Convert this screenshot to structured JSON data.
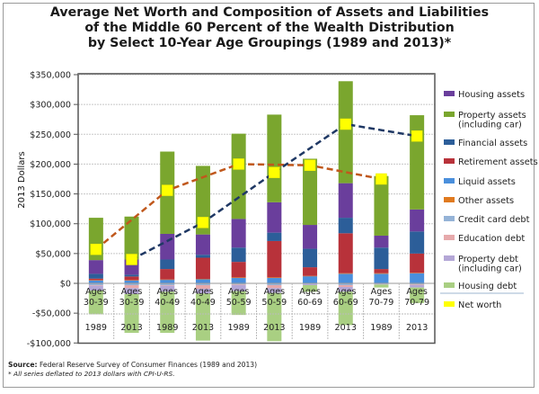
{
  "title_lines": [
    "Average Net Worth and Composition of Assets and Liabilities",
    "of the Middle 60 Percent of the Wealth Distribution",
    "by Select 10-Year Age Groupings (1989 and 2013)*"
  ],
  "source_label": "Source:",
  "source_text": " Federal Reserve Survey of Consumer Finances (1989 and 2013)",
  "note": "* All series deflated to 2013 dollars with CPI-U-RS.",
  "chart_data": {
    "type": "bar",
    "stacked": true,
    "title": "Average Net Worth and Composition of Assets and Liabilities of the Middle 60 Percent of the Wealth Distribution by Select 10-Year Age Groupings (1989 and 2013)*",
    "xlabel": "",
    "ylabel": "2013 Dollars",
    "ylim": [
      -100000,
      350000
    ],
    "yticks": [
      -100000,
      -50000,
      0,
      50000,
      100000,
      150000,
      200000,
      250000,
      300000,
      350000
    ],
    "ytick_labels": [
      "-$100,000",
      "-$50,000",
      "$0",
      "$50,000",
      "$100,000",
      "$150,000",
      "$200,000",
      "$250,000",
      "$300,000",
      "$350,000"
    ],
    "grid": true,
    "legend_position": "right",
    "categories": [
      {
        "age": "Ages 30-39",
        "year": "1989"
      },
      {
        "age": "Ages 30-39",
        "year": "2013"
      },
      {
        "age": "Ages 40-49",
        "year": "1989"
      },
      {
        "age": "Ages 40-49",
        "year": "2013"
      },
      {
        "age": "Ages 50-59",
        "year": "1989"
      },
      {
        "age": "Ages 50-59",
        "year": "2013"
      },
      {
        "age": "Ages 60-69",
        "year": "1989"
      },
      {
        "age": "Ages 60-69",
        "year": "2013"
      },
      {
        "age": "Ages 70-79",
        "year": "1989"
      },
      {
        "age": "Ages 70-79",
        "year": "2013"
      }
    ],
    "series": [
      {
        "name": "Liquid assets",
        "color": "#4a8fdc",
        "values": [
          5000,
          5000,
          6000,
          7000,
          9000,
          9000,
          12000,
          16000,
          16000,
          17000
        ]
      },
      {
        "name": "Other assets",
        "color": "#e07a1f",
        "values": [
          500,
          500,
          500,
          500,
          1000,
          1000,
          500,
          1000,
          1000,
          600
        ]
      },
      {
        "name": "Retirement assets",
        "color": "#b8323a",
        "values": [
          2500,
          6000,
          17500,
          35500,
          26000,
          61000,
          14500,
          67000,
          7000,
          32400
        ]
      },
      {
        "name": "Financial assets",
        "color": "#2c5e99",
        "values": [
          8000,
          3000,
          16000,
          5000,
          24000,
          14000,
          31000,
          26000,
          36000,
          37000
        ]
      },
      {
        "name": "Housing assets",
        "color": "#6a3e9c",
        "values": [
          23000,
          25500,
          43000,
          34000,
          48000,
          51000,
          40000,
          58000,
          20000,
          37000
        ]
      },
      {
        "name": "Property assets (including car)",
        "color": "#7aa62e",
        "values": [
          71000,
          72000,
          138000,
          115000,
          143000,
          147000,
          111000,
          171000,
          100000,
          158000
        ]
      },
      {
        "name": "Credit card debt",
        "color": "#95b3d7",
        "values": [
          -3000,
          -3000,
          -3000,
          -3000,
          -2000,
          -3000,
          -1000,
          -3000,
          -1000,
          -2000
        ]
      },
      {
        "name": "Education debt",
        "color": "#e6a9ab",
        "values": [
          -1000,
          -5000,
          -1000,
          -6000,
          -1000,
          -5000,
          0,
          -3000,
          0,
          -1000
        ]
      },
      {
        "name": "Property debt (including car)",
        "color": "#b4a7d6",
        "values": [
          -8000,
          -10000,
          -10000,
          -8000,
          -10000,
          -8000,
          -2000,
          -8000,
          -1000,
          -4000
        ]
      },
      {
        "name": "Housing debt",
        "color": "#a9cf82",
        "values": [
          -40000,
          -65000,
          -69000,
          -79000,
          -40000,
          -81000,
          -11000,
          -56000,
          -5000,
          -26000
        ]
      }
    ],
    "net_worth": {
      "name": "Net worth",
      "color": "#ffff00",
      "values": [
        57000,
        40000,
        156000,
        102000,
        200000,
        186000,
        198000,
        267000,
        175000,
        247000
      ],
      "lines": [
        {
          "year": "1989",
          "color": "#c0581c",
          "style": "dashed"
        },
        {
          "year": "2013",
          "color": "#1f3864",
          "style": "dashed"
        }
      ]
    },
    "legend": [
      {
        "label": [
          "Housing assets"
        ],
        "color": "#6a3e9c"
      },
      {
        "label": [
          "Property assets",
          "(including car)"
        ],
        "color": "#7aa62e"
      },
      {
        "label": [
          "Financial assets"
        ],
        "color": "#2c5e99"
      },
      {
        "label": [
          "Retirement assets"
        ],
        "color": "#b8323a"
      },
      {
        "label": [
          "Liquid assets"
        ],
        "color": "#4a8fdc"
      },
      {
        "label": [
          "Other assets"
        ],
        "color": "#e07a1f"
      },
      {
        "label": [
          "Credit card debt"
        ],
        "color": "#95b3d7"
      },
      {
        "label": [
          "Education debt"
        ],
        "color": "#e6a9ab"
      },
      {
        "label": [
          "Property debt",
          "(including car)"
        ],
        "color": "#b4a7d6"
      },
      {
        "label": [
          "Housing debt"
        ],
        "color": "#a9cf82"
      },
      {
        "label": [
          "Net worth"
        ],
        "color": "#ffff00"
      }
    ]
  }
}
